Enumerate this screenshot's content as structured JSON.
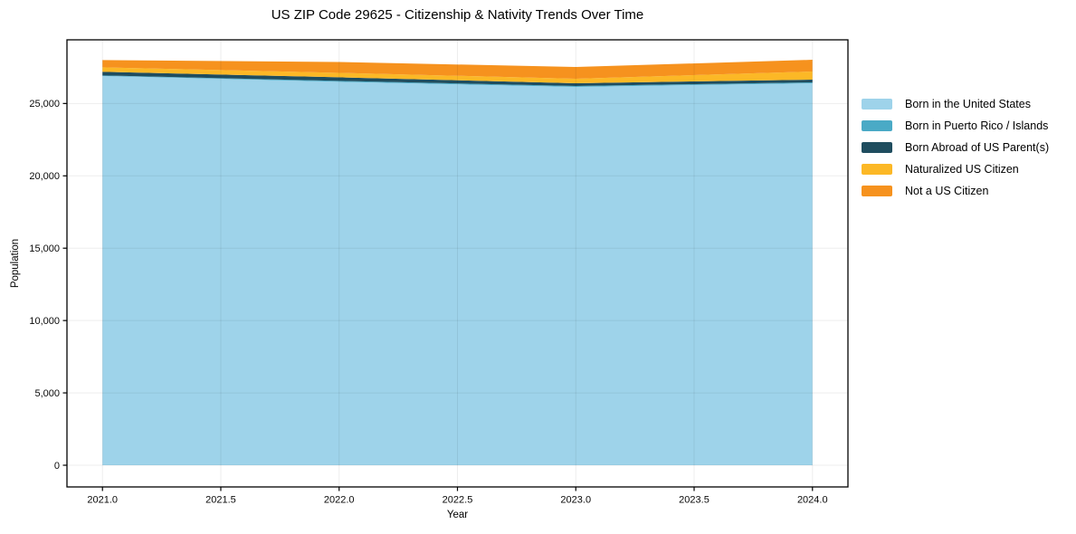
{
  "chart_data": {
    "type": "area",
    "stacked": true,
    "title": "US ZIP Code 29625 - Citizenship & Nativity Trends Over Time",
    "xlabel": "Year",
    "ylabel": "Population",
    "x": [
      2021,
      2022,
      2023,
      2024
    ],
    "series": [
      {
        "name": "Born in the United States",
        "color": "#9ED3EA",
        "values": [
          26900,
          26500,
          26150,
          26400
        ]
      },
      {
        "name": "Born in Puerto Rico / Islands",
        "color": "#4AAAC6",
        "values": [
          40,
          60,
          60,
          60
        ]
      },
      {
        "name": "Born Abroad of US Parent(s)",
        "color": "#1F4D5F",
        "values": [
          250,
          250,
          190,
          190
        ]
      },
      {
        "name": "Naturalized US Citizen",
        "color": "#FCB826",
        "values": [
          310,
          310,
          310,
          560
        ]
      },
      {
        "name": "Not a US Citizen",
        "color": "#F6921E",
        "values": [
          500,
          750,
          810,
          810
        ]
      }
    ],
    "xlim": [
      2020.85,
      2024.15
    ],
    "ylim": [
      -1500,
      29400
    ],
    "x_ticks": [
      {
        "value": 2021.0,
        "label": "2021.0"
      },
      {
        "value": 2021.5,
        "label": "2021.5"
      },
      {
        "value": 2022.0,
        "label": "2022.0"
      },
      {
        "value": 2022.5,
        "label": "2022.5"
      },
      {
        "value": 2023.0,
        "label": "2023.0"
      },
      {
        "value": 2023.5,
        "label": "2023.5"
      },
      {
        "value": 2024.0,
        "label": "2024.0"
      }
    ],
    "y_ticks": [
      {
        "value": 0,
        "label": "0"
      },
      {
        "value": 5000,
        "label": "5,000"
      },
      {
        "value": 10000,
        "label": "10,000"
      },
      {
        "value": 15000,
        "label": "15,000"
      },
      {
        "value": 20000,
        "label": "20,000"
      },
      {
        "value": 25000,
        "label": "25,000"
      }
    ],
    "grid": true,
    "legend_position": "right",
    "frame_color": "#000000",
    "grid_color": "rgba(0,0,0,0.07)"
  }
}
